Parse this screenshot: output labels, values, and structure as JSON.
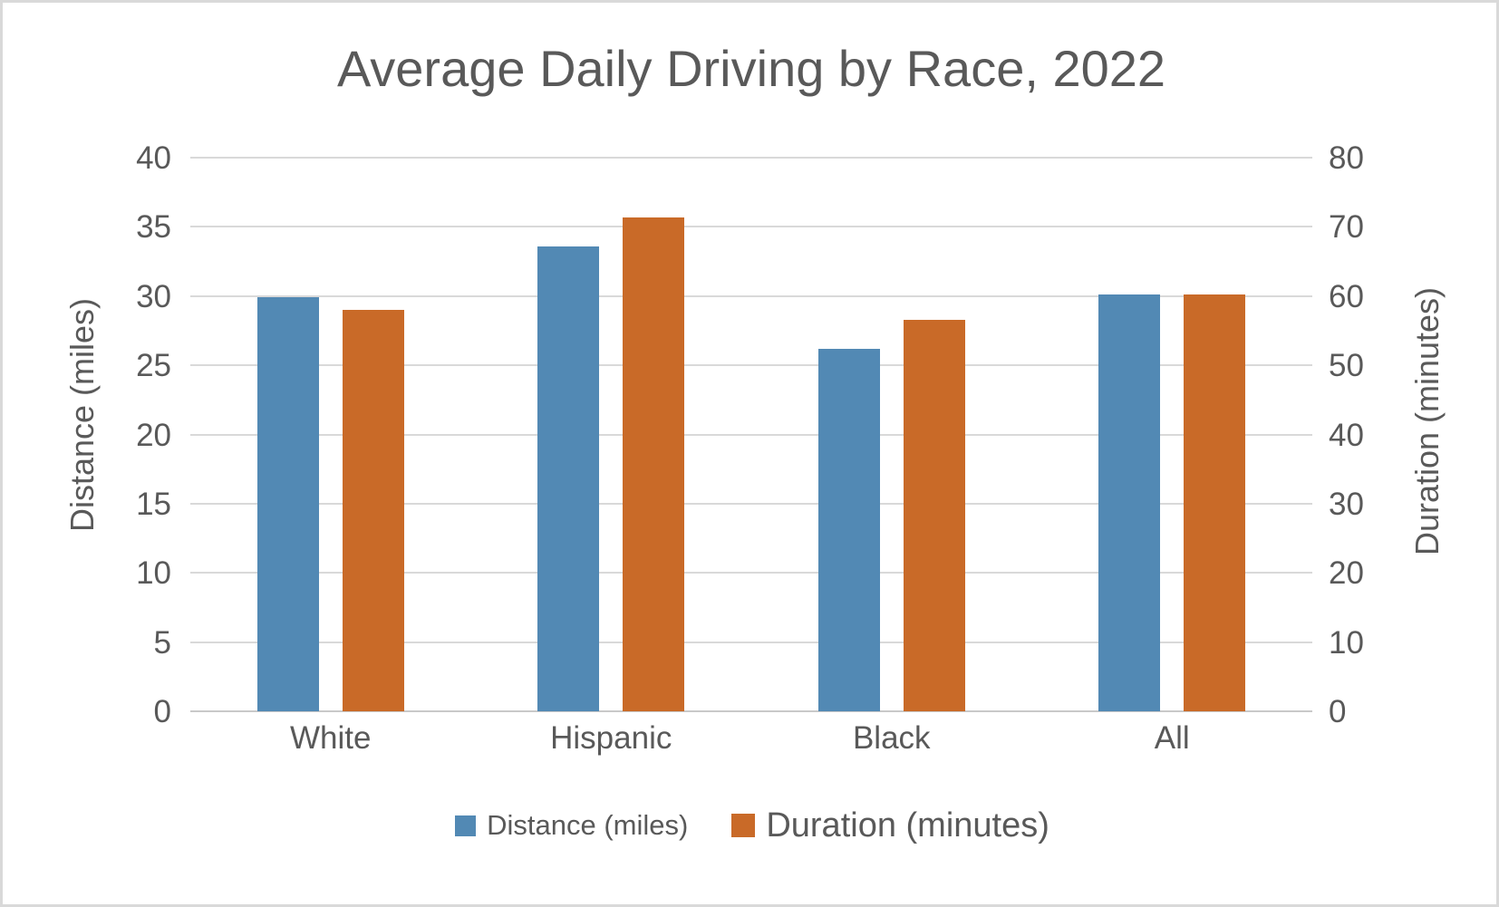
{
  "chart_data": {
    "type": "bar",
    "title": "Average Daily Driving by Race, 2022",
    "categories": [
      "White",
      "Hispanic",
      "Black",
      "All"
    ],
    "series": [
      {
        "name": "Distance (miles)",
        "axis": "left",
        "color": "#5289B4",
        "values": [
          29.9,
          33.6,
          26.2,
          30.1
        ]
      },
      {
        "name": "Duration (minutes)",
        "axis": "right",
        "color": "#C96A28",
        "values": [
          58,
          71.4,
          56.6,
          60.2
        ]
      }
    ],
    "left_axis": {
      "label": "Distance (miles)",
      "min": 0,
      "max": 40,
      "ticks": [
        0,
        5,
        10,
        15,
        20,
        25,
        30,
        35,
        40
      ]
    },
    "right_axis": {
      "label": "Duration (minutes)",
      "min": 0,
      "max": 80,
      "ticks": [
        0,
        10,
        20,
        30,
        40,
        50,
        60,
        70,
        80
      ]
    },
    "grid": true,
    "legend_position": "bottom",
    "colors": {
      "grid": "#d9d9d9",
      "text": "#595959",
      "distance_bar": "#5289B4",
      "duration_bar": "#C96A28"
    }
  }
}
